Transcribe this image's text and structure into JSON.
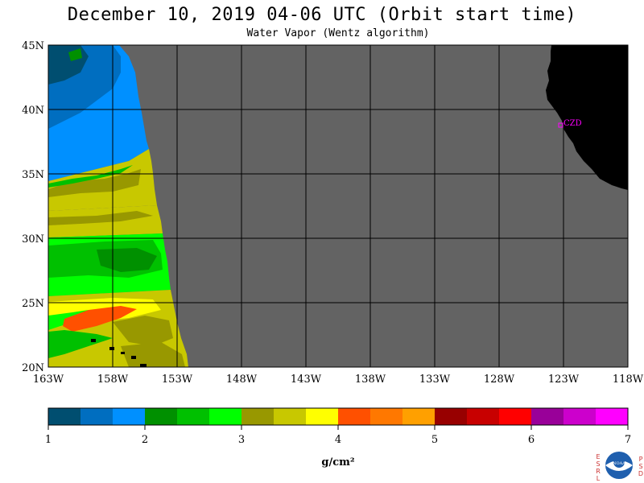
{
  "title": "December 10, 2019  04-06 UTC  (Orbit start time)",
  "subtitle": "Water Vapor (Wentz algorithm)",
  "map": {
    "lat_ticks": [
      "45N",
      "40N",
      "35N",
      "30N",
      "25N",
      "20N"
    ],
    "lon_ticks": [
      "163W",
      "158W",
      "153W",
      "148W",
      "143W",
      "138W",
      "133W",
      "128W",
      "123W",
      "118W"
    ],
    "station_label": "CZD",
    "colors": {
      "no_data": "#636363",
      "land": "#000000",
      "station": "#ff00ff",
      "grid": "#000000"
    }
  },
  "colorbar": {
    "tick_labels": [
      "1",
      "2",
      "3",
      "4",
      "5",
      "6",
      "7"
    ],
    "unit_label": "g/cm²",
    "colors": [
      "#004e70",
      "#006ec0",
      "#0090ff",
      "#009000",
      "#00c000",
      "#00ff00",
      "#989800",
      "#c8c800",
      "#ffff00",
      "#ff5000",
      "#ff7800",
      "#ffa000",
      "#980000",
      "#c80000",
      "#ff0000",
      "#990099",
      "#cc00cc",
      "#ff00ff"
    ]
  },
  "logo": {
    "left_letters": [
      "E",
      "S",
      "R",
      "L"
    ],
    "right_letters": [
      "P",
      "S",
      "D"
    ],
    "center_text": "NOAA",
    "colors": {
      "letters": "#cc3333",
      "disc": "#1f5fae",
      "seal": "#ffffff"
    }
  }
}
